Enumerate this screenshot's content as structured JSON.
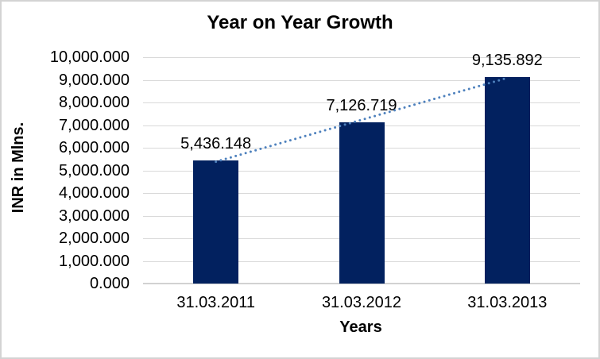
{
  "chart_data": {
    "type": "bar",
    "title": "Year on Year Growth",
    "xlabel": "Years",
    "ylabel": "INR in Mlns.",
    "categories": [
      "31.03.2011",
      "31.03.2012",
      "31.03.2013"
    ],
    "values": [
      5436.148,
      7126.719,
      9135.892
    ],
    "value_labels": [
      "5,436.148",
      "7,126.719",
      "9,135.892"
    ],
    "ylim": [
      0,
      10000
    ],
    "ytick_step": 1000,
    "ytick_labels": [
      "0.000",
      "1,000.000",
      "2,000.000",
      "3,000.000",
      "4,000.000",
      "5,000.000",
      "6,000.000",
      "7,000.000",
      "8,000.000",
      "9,000.000",
      "10,000.000"
    ],
    "grid": true,
    "legend": "none",
    "trendline": {
      "type": "linear",
      "style": "dotted",
      "color": "#4E81BD"
    },
    "colors": {
      "bar": "#02215F",
      "gridline": "#D9D9D9",
      "axis_line": "#D2D2D2",
      "frame_border": "#D3D3D3",
      "background": "#FFFFFF",
      "text": "#000000"
    }
  }
}
